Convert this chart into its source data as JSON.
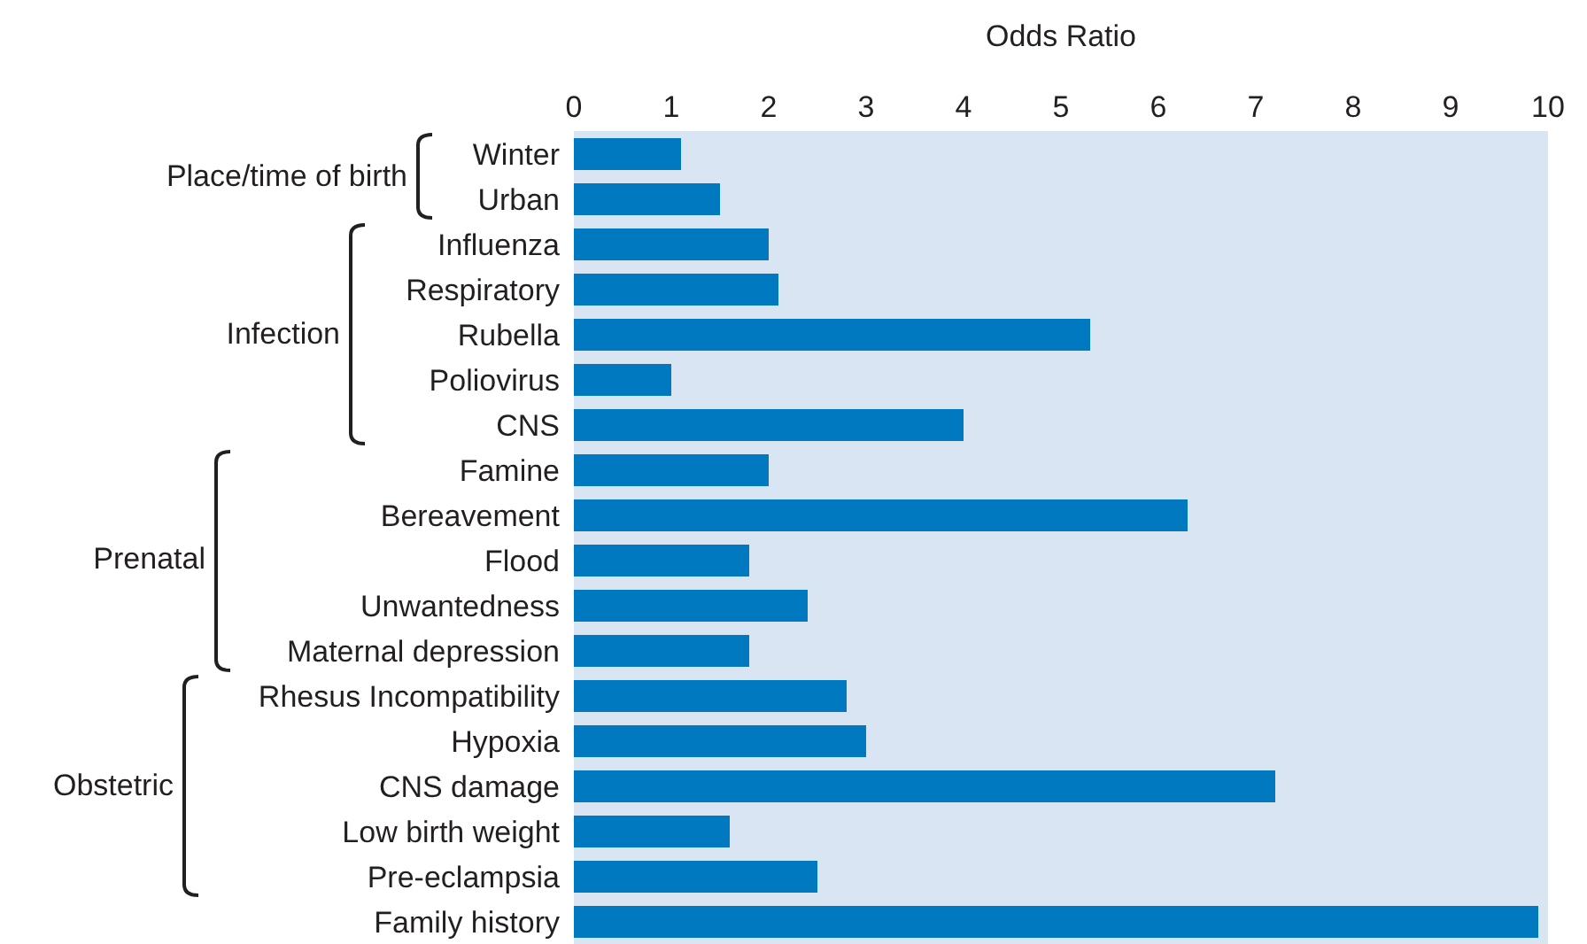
{
  "chart_data": {
    "type": "bar",
    "orientation": "horizontal",
    "xlabel": "Odds Ratio",
    "categories": [
      "Winter",
      "Urban",
      "Influenza",
      "Respiratory",
      "Rubella",
      "Poliovirus",
      "CNS",
      "Famine",
      "Bereavement",
      "Flood",
      "Unwantedness",
      "Maternal depression",
      "Rhesus Incompatibility",
      "Hypoxia",
      "CNS damage",
      "Low birth weight",
      "Pre-eclampsia",
      "Family history"
    ],
    "values": [
      1.1,
      1.5,
      2.0,
      2.1,
      5.3,
      1.0,
      4.0,
      2.0,
      6.3,
      1.8,
      2.4,
      1.8,
      2.8,
      3.0,
      7.2,
      1.6,
      2.5,
      9.9
    ],
    "color": "#0079c1",
    "xlim": [
      0,
      10
    ],
    "xticks": [
      0,
      1,
      2,
      3,
      4,
      5,
      6,
      7,
      8,
      9,
      10
    ],
    "grid": false,
    "legend": false,
    "annotations": [
      "Place/time of birth",
      "Infection",
      "Prenatal",
      "Obstetric"
    ]
  }
}
